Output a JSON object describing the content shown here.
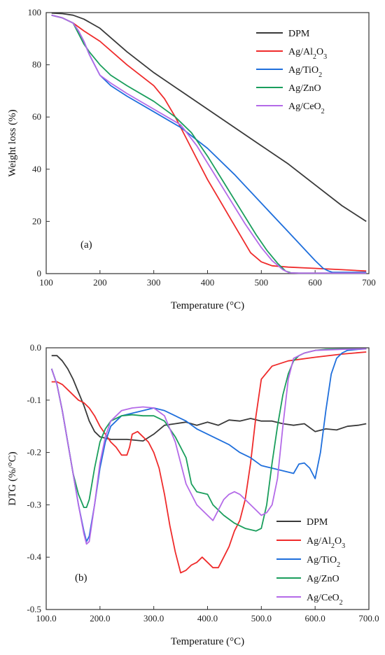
{
  "chart_data": [
    {
      "type": "line",
      "panel_label": "(a)",
      "xlabel": "Temperature (°C)",
      "ylabel": "Weight loss (%)",
      "xlim": [
        100,
        700
      ],
      "ylim": [
        0,
        100
      ],
      "xticks": [
        100,
        200,
        300,
        400,
        500,
        600,
        700
      ],
      "yticks": [
        0,
        20,
        40,
        60,
        80,
        100
      ],
      "grid": false,
      "legend_position": "top-right",
      "series": [
        {
          "name": "DPM",
          "color": "#3a3a3a",
          "x": [
            110,
            130,
            150,
            170,
            200,
            250,
            300,
            350,
            400,
            450,
            500,
            550,
            600,
            650,
            695
          ],
          "y": [
            99.8,
            99.6,
            99,
            97.5,
            94,
            85,
            77,
            70,
            63,
            56,
            49,
            42,
            34,
            26,
            20
          ]
        },
        {
          "name": "Ag/Al2O3",
          "color": "#ef2b2b",
          "x": [
            110,
            130,
            150,
            170,
            200,
            250,
            300,
            320,
            340,
            360,
            380,
            400,
            420,
            440,
            460,
            480,
            500,
            520,
            550,
            600,
            650,
            695
          ],
          "y": [
            99,
            98,
            96,
            93,
            89,
            80,
            72,
            67,
            60,
            52,
            44,
            36,
            29,
            22,
            15,
            8,
            4.5,
            3,
            2.5,
            2,
            1.5,
            1
          ]
        },
        {
          "name": "Ag/TiO2",
          "color": "#1f6fdc",
          "x": [
            110,
            130,
            150,
            160,
            170,
            180,
            190,
            200,
            220,
            250,
            300,
            350,
            400,
            450,
            500,
            550,
            600,
            615,
            625,
            632,
            650,
            695
          ],
          "y": [
            99,
            98,
            96,
            93,
            89,
            84,
            80,
            76,
            72,
            68,
            62,
            56,
            48,
            38,
            27,
            16,
            5,
            2,
            1,
            0.5,
            0.5,
            0.5
          ]
        },
        {
          "name": "Ag/ZnO",
          "color": "#1a9e5c",
          "x": [
            110,
            130,
            150,
            160,
            170,
            180,
            200,
            220,
            250,
            300,
            340,
            370,
            400,
            430,
            460,
            490,
            510,
            530,
            545,
            555,
            570,
            695
          ],
          "y": [
            99,
            98,
            96,
            92,
            88,
            85,
            80,
            76,
            72,
            66,
            60,
            54,
            45,
            35,
            25,
            15,
            9,
            4,
            1,
            0.3,
            0.2,
            0.2
          ]
        },
        {
          "name": "Ag/CeO2",
          "color": "#b46ae8",
          "x": [
            110,
            130,
            150,
            160,
            170,
            180,
            190,
            200,
            220,
            250,
            300,
            350,
            380,
            410,
            440,
            470,
            500,
            520,
            540,
            552,
            570,
            695
          ],
          "y": [
            99,
            98,
            96,
            93,
            89,
            84,
            80,
            76,
            73,
            69,
            63,
            57,
            49,
            39,
            29,
            19,
            10,
            5,
            1.5,
            0.3,
            0.2,
            0.2
          ]
        }
      ],
      "legend_labels": [
        {
          "base": "DPM",
          "sub": "",
          "tail": ""
        },
        {
          "base": "Ag/Al",
          "sub": "2",
          "mid": "O",
          "sub2": "3"
        },
        {
          "base": "Ag/TiO",
          "sub": "2",
          "mid": "",
          "sub2": ""
        },
        {
          "base": "Ag/ZnO",
          "sub": "",
          "mid": "",
          "sub2": ""
        },
        {
          "base": "Ag/CeO",
          "sub": "2",
          "mid": "",
          "sub2": ""
        }
      ]
    },
    {
      "type": "line",
      "panel_label": "(b)",
      "xlabel": "Temperature (°C)",
      "ylabel": "DTG (%/°C)",
      "xlim": [
        100,
        700
      ],
      "ylim": [
        -0.5,
        0.0
      ],
      "xticks": [
        100,
        200,
        300,
        400,
        500,
        600,
        700
      ],
      "yticks": [
        -0.5,
        -0.4,
        -0.3,
        -0.2,
        -0.1,
        0.0
      ],
      "grid": false,
      "legend_position": "bottom-right",
      "series": [
        {
          "name": "DPM",
          "color": "#3a3a3a",
          "x": [
            110,
            120,
            130,
            140,
            150,
            160,
            170,
            180,
            190,
            200,
            220,
            250,
            280,
            300,
            320,
            340,
            360,
            380,
            400,
            420,
            440,
            460,
            480,
            500,
            520,
            540,
            560,
            580,
            600,
            620,
            640,
            660,
            680,
            695
          ],
          "y": [
            -0.015,
            -0.015,
            -0.025,
            -0.04,
            -0.06,
            -0.085,
            -0.11,
            -0.14,
            -0.16,
            -0.17,
            -0.175,
            -0.175,
            -0.178,
            -0.165,
            -0.148,
            -0.145,
            -0.142,
            -0.148,
            -0.142,
            -0.148,
            -0.138,
            -0.14,
            -0.135,
            -0.14,
            -0.14,
            -0.145,
            -0.148,
            -0.145,
            -0.16,
            -0.155,
            -0.157,
            -0.15,
            -0.148,
            -0.145
          ]
        },
        {
          "name": "Ag/Al2O3",
          "color": "#ef2b2b",
          "x": [
            110,
            120,
            130,
            140,
            150,
            160,
            170,
            180,
            190,
            200,
            210,
            220,
            230,
            240,
            250,
            255,
            260,
            270,
            280,
            290,
            300,
            310,
            320,
            330,
            340,
            350,
            360,
            370,
            380,
            390,
            400,
            410,
            420,
            430,
            440,
            450,
            460,
            470,
            480,
            490,
            500,
            520,
            550,
            600,
            650,
            695
          ],
          "y": [
            -0.065,
            -0.065,
            -0.07,
            -0.08,
            -0.09,
            -0.1,
            -0.105,
            -0.115,
            -0.13,
            -0.15,
            -0.165,
            -0.18,
            -0.19,
            -0.205,
            -0.205,
            -0.19,
            -0.165,
            -0.16,
            -0.17,
            -0.18,
            -0.2,
            -0.23,
            -0.28,
            -0.34,
            -0.39,
            -0.43,
            -0.425,
            -0.415,
            -0.41,
            -0.4,
            -0.41,
            -0.42,
            -0.42,
            -0.4,
            -0.38,
            -0.35,
            -0.33,
            -0.29,
            -0.22,
            -0.13,
            -0.06,
            -0.035,
            -0.025,
            -0.018,
            -0.012,
            -0.008
          ]
        },
        {
          "name": "Ag/TiO2",
          "color": "#1f6fdc",
          "x": [
            110,
            120,
            130,
            140,
            150,
            160,
            170,
            175,
            180,
            190,
            200,
            210,
            220,
            240,
            260,
            280,
            300,
            320,
            340,
            360,
            380,
            400,
            420,
            440,
            460,
            480,
            500,
            520,
            540,
            560,
            570,
            580,
            590,
            600,
            610,
            620,
            630,
            640,
            650,
            660,
            680,
            695
          ],
          "y": [
            -0.04,
            -0.07,
            -0.12,
            -0.18,
            -0.24,
            -0.3,
            -0.35,
            -0.37,
            -0.36,
            -0.3,
            -0.23,
            -0.18,
            -0.15,
            -0.13,
            -0.125,
            -0.12,
            -0.115,
            -0.12,
            -0.13,
            -0.14,
            -0.155,
            -0.165,
            -0.175,
            -0.185,
            -0.2,
            -0.21,
            -0.225,
            -0.23,
            -0.235,
            -0.24,
            -0.222,
            -0.22,
            -0.23,
            -0.25,
            -0.2,
            -0.12,
            -0.05,
            -0.02,
            -0.01,
            -0.005,
            -0.003,
            -0.002
          ]
        },
        {
          "name": "Ag/ZnO",
          "color": "#1a9e5c",
          "x": [
            110,
            120,
            130,
            140,
            150,
            160,
            170,
            175,
            180,
            190,
            200,
            210,
            220,
            240,
            260,
            280,
            300,
            320,
            340,
            360,
            370,
            380,
            400,
            410,
            420,
            430,
            450,
            470,
            490,
            500,
            510,
            520,
            530,
            540,
            550,
            560,
            570,
            580,
            600,
            620,
            650,
            695
          ],
          "y": [
            -0.04,
            -0.07,
            -0.12,
            -0.18,
            -0.24,
            -0.28,
            -0.305,
            -0.305,
            -0.29,
            -0.23,
            -0.18,
            -0.155,
            -0.14,
            -0.13,
            -0.128,
            -0.13,
            -0.13,
            -0.14,
            -0.17,
            -0.21,
            -0.26,
            -0.275,
            -0.28,
            -0.3,
            -0.31,
            -0.32,
            -0.335,
            -0.345,
            -0.35,
            -0.345,
            -0.3,
            -0.22,
            -0.15,
            -0.09,
            -0.05,
            -0.025,
            -0.015,
            -0.01,
            -0.005,
            -0.003,
            -0.002,
            -0.002
          ]
        },
        {
          "name": "Ag/CeO2",
          "color": "#b46ae8",
          "x": [
            110,
            120,
            130,
            140,
            150,
            160,
            170,
            175,
            180,
            190,
            200,
            210,
            220,
            240,
            260,
            280,
            300,
            320,
            340,
            360,
            380,
            390,
            400,
            410,
            420,
            430,
            440,
            450,
            460,
            470,
            480,
            490,
            500,
            510,
            520,
            530,
            540,
            550,
            560,
            580,
            600,
            650,
            695
          ],
          "y": [
            -0.04,
            -0.07,
            -0.12,
            -0.18,
            -0.24,
            -0.3,
            -0.355,
            -0.375,
            -0.37,
            -0.3,
            -0.22,
            -0.17,
            -0.14,
            -0.12,
            -0.115,
            -0.113,
            -0.115,
            -0.13,
            -0.18,
            -0.26,
            -0.3,
            -0.31,
            -0.32,
            -0.33,
            -0.31,
            -0.29,
            -0.28,
            -0.275,
            -0.28,
            -0.29,
            -0.3,
            -0.31,
            -0.32,
            -0.315,
            -0.3,
            -0.25,
            -0.15,
            -0.06,
            -0.02,
            -0.01,
            -0.005,
            -0.003,
            -0.002
          ]
        }
      ],
      "legend_labels": [
        {
          "base": "DPM",
          "sub": "",
          "mid": "",
          "sub2": ""
        },
        {
          "base": "Ag/Al",
          "sub": "2",
          "mid": "O",
          "sub2": "3"
        },
        {
          "base": "Ag/TiO",
          "sub": "2",
          "mid": "",
          "sub2": ""
        },
        {
          "base": "Ag/ZnO",
          "sub": "",
          "mid": "",
          "sub2": ""
        },
        {
          "base": "Ag/CeO",
          "sub": "2",
          "mid": "",
          "sub2": ""
        }
      ]
    }
  ]
}
